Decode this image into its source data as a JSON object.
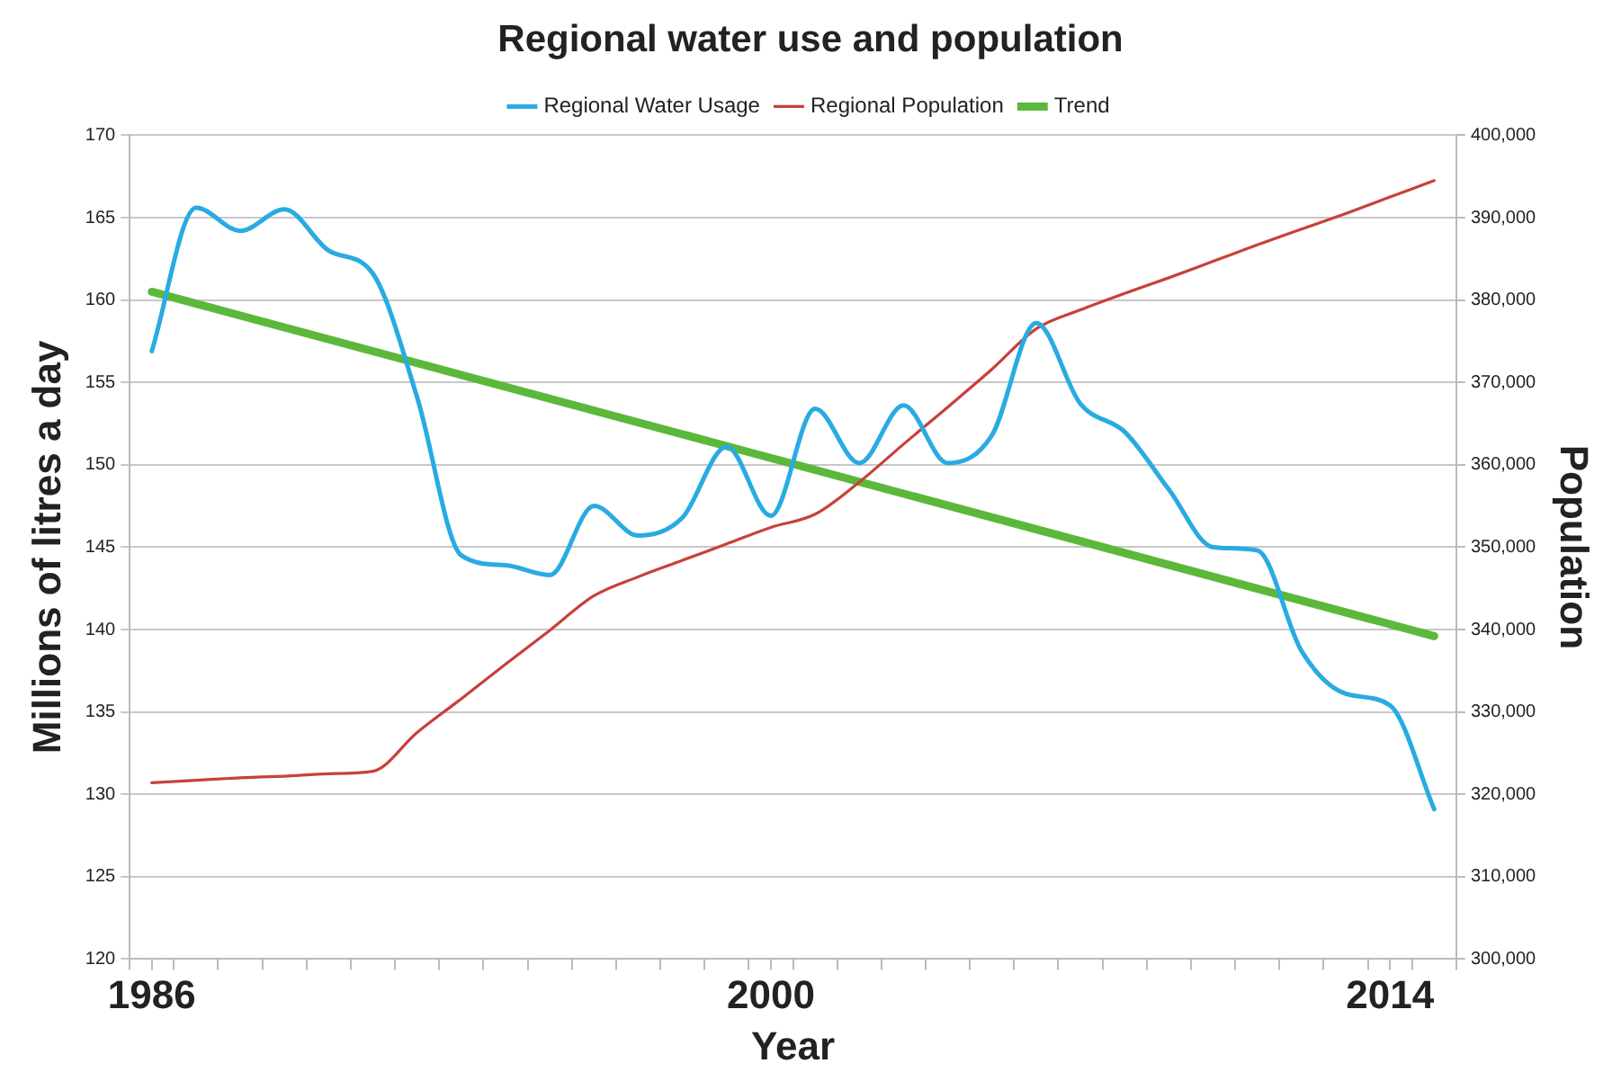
{
  "chart_data": {
    "type": "line",
    "title": "Regional water use and population",
    "xlabel": "Year",
    "ylabel": "Millions of litres a day",
    "y2label": "Population",
    "x": [
      1986,
      1987,
      1988,
      1989,
      1990,
      1991,
      1992,
      1993,
      1994,
      1995,
      1996,
      1997,
      1998,
      1999,
      2000,
      2001,
      2002,
      2003,
      2004,
      2005,
      2006,
      2007,
      2008,
      2009,
      2010,
      2011,
      2012,
      2013,
      2014,
      2015
    ],
    "series": [
      {
        "name": "Regional Water Usage",
        "color": "#29abe2",
        "values": [
          156.9,
          165.6,
          164.2,
          165.5,
          163.0,
          161.6,
          154.1,
          144.5,
          143.9,
          143.3,
          147.5,
          145.7,
          146.8,
          151.1,
          146.9,
          153.4,
          150.1,
          153.6,
          150.1,
          151.8,
          158.6,
          153.7,
          152.0,
          148.5,
          145.0,
          144.8,
          138.7,
          136.1,
          135.4,
          129.1
        ]
      },
      {
        "name": "Regional Population",
        "color": "#c8403a",
        "axis": "y2",
        "values": [
          321400,
          321700,
          322000,
          322200,
          322500,
          322800,
          327500,
          331600,
          335800,
          339900,
          344100,
          346400,
          348400,
          350400,
          352400,
          354000,
          357900,
          362500,
          367000,
          371600,
          376500,
          378800,
          380800,
          382700,
          384700,
          386700,
          388600,
          390500,
          392500,
          394500
        ]
      },
      {
        "name": "Trend",
        "color": "#5cb83a",
        "x": [
          1986,
          2015
        ],
        "values": [
          160.5,
          139.6
        ]
      }
    ],
    "xlim": [
      1985.5,
      2015.5
    ],
    "xticks": [
      {
        "value": 1985.5,
        "label": null
      },
      {
        "value": 1986,
        "label": "1986"
      },
      {
        "value": 1986.5,
        "label": null
      },
      {
        "value": 1987.5,
        "label": null
      },
      {
        "value": 1988.5,
        "label": null
      },
      {
        "value": 1989.5,
        "label": null
      },
      {
        "value": 1990.5,
        "label": null
      },
      {
        "value": 1991.5,
        "label": null
      },
      {
        "value": 1992.5,
        "label": null
      },
      {
        "value": 1993.5,
        "label": null
      },
      {
        "value": 1994.5,
        "label": null
      },
      {
        "value": 1995.5,
        "label": null
      },
      {
        "value": 1996.5,
        "label": null
      },
      {
        "value": 1997.5,
        "label": null
      },
      {
        "value": 1998.5,
        "label": null
      },
      {
        "value": 1999.5,
        "label": null
      },
      {
        "value": 2000,
        "label": "2000"
      },
      {
        "value": 2000.5,
        "label": null
      },
      {
        "value": 2001.5,
        "label": null
      },
      {
        "value": 2002.5,
        "label": null
      },
      {
        "value": 2003.5,
        "label": null
      },
      {
        "value": 2004.5,
        "label": null
      },
      {
        "value": 2005.5,
        "label": null
      },
      {
        "value": 2006.5,
        "label": null
      },
      {
        "value": 2007.5,
        "label": null
      },
      {
        "value": 2008.5,
        "label": null
      },
      {
        "value": 2009.5,
        "label": null
      },
      {
        "value": 2010.5,
        "label": null
      },
      {
        "value": 2011.5,
        "label": null
      },
      {
        "value": 2012.5,
        "label": null
      },
      {
        "value": 2013.5,
        "label": null
      },
      {
        "value": 2014,
        "label": "2014"
      },
      {
        "value": 2014.5,
        "label": null
      },
      {
        "value": 2015.5,
        "label": null
      }
    ],
    "ylim": [
      120,
      170
    ],
    "yticks": [
      120,
      125,
      130,
      135,
      140,
      145,
      150,
      155,
      160,
      165,
      170
    ],
    "y2lim": [
      300000,
      400000
    ],
    "y2ticks": [
      {
        "value": 300000,
        "label": "300,000"
      },
      {
        "value": 310000,
        "label": "310,000"
      },
      {
        "value": 320000,
        "label": "320,000"
      },
      {
        "value": 330000,
        "label": "330,000"
      },
      {
        "value": 340000,
        "label": "340,000"
      },
      {
        "value": 350000,
        "label": "350,000"
      },
      {
        "value": 360000,
        "label": "360,000"
      },
      {
        "value": 370000,
        "label": "370,000"
      },
      {
        "value": 380000,
        "label": "380,000"
      },
      {
        "value": 390000,
        "label": "390,000"
      },
      {
        "value": 400000,
        "label": "400,000"
      }
    ],
    "grid": "y",
    "legend": "top",
    "marker": "none"
  }
}
